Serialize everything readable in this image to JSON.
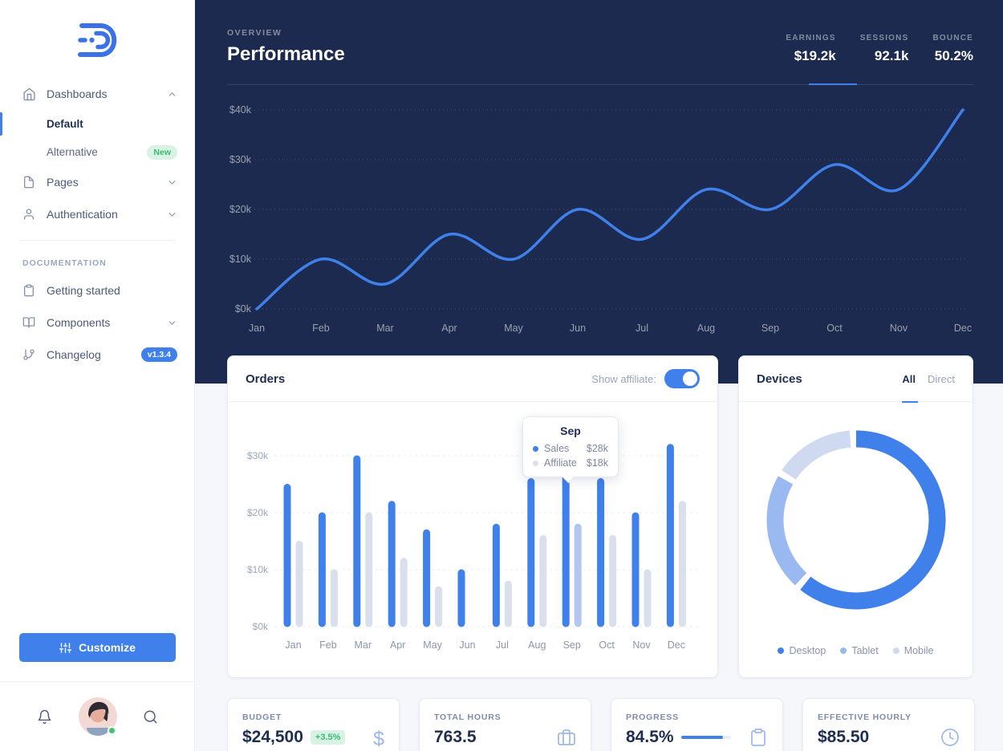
{
  "colors": {
    "accent": "#3f80ea",
    "navy": "#1b2a4e",
    "success": "#3cb878",
    "bar_gray": "#d9e0eb",
    "bar_highlight": "#b3c7ee"
  },
  "sidebar": {
    "items": [
      {
        "label": "Dashboards",
        "children": [
          {
            "label": "Default"
          },
          {
            "label": "Alternative",
            "badge": "New"
          }
        ]
      },
      {
        "label": "Pages"
      },
      {
        "label": "Authentication"
      }
    ],
    "section": "DOCUMENTATION",
    "doc_items": [
      {
        "label": "Getting started"
      },
      {
        "label": "Components"
      },
      {
        "label": "Changelog",
        "badge": "v1.3.4"
      }
    ],
    "customize": "Customize"
  },
  "header": {
    "eyebrow": "OVERVIEW",
    "title": "Performance",
    "stats": [
      {
        "label": "EARNINGS",
        "value": "$19.2k",
        "active": true
      },
      {
        "label": "SESSIONS",
        "value": "92.1k"
      },
      {
        "label": "BOUNCE",
        "value": "50.2%"
      }
    ]
  },
  "orders_card": {
    "title": "Orders",
    "toggle_label": "Show affiliate:",
    "toggle_state": "on",
    "tooltip": {
      "title": "Sep",
      "rows": [
        {
          "name": "Sales",
          "value": "$28k"
        },
        {
          "name": "Affiliate",
          "value": "$18k"
        }
      ]
    }
  },
  "devices_card": {
    "title": "Devices",
    "tabs": [
      "All",
      "Direct"
    ],
    "active_tab": "All",
    "legend": [
      "Desktop",
      "Tablet",
      "Mobile"
    ]
  },
  "stat_cards": [
    {
      "label": "BUDGET",
      "value": "$24,500",
      "badge": "+3.5%",
      "icon": "dollar-icon"
    },
    {
      "label": "TOTAL HOURS",
      "value": "763.5",
      "icon": "briefcase-icon"
    },
    {
      "label": "PROGRESS",
      "value": "84.5%",
      "progress_percent": 84.5,
      "icon": "clipboard-icon"
    },
    {
      "label": "EFFECTIVE HOURLY",
      "value": "$85.50",
      "icon": "clock-icon"
    }
  ],
  "chart_data": [
    {
      "name": "performance-line",
      "type": "line",
      "title": "Performance",
      "x": [
        "Jan",
        "Feb",
        "Mar",
        "Apr",
        "May",
        "Jun",
        "Jul",
        "Aug",
        "Sep",
        "Oct",
        "Nov",
        "Dec"
      ],
      "series": [
        {
          "name": "Earnings",
          "values": [
            0,
            10,
            5,
            15,
            10,
            20,
            14,
            24,
            20,
            29,
            24,
            40
          ]
        }
      ],
      "unit": "$k",
      "yticks": [
        0,
        10,
        20,
        30,
        40
      ],
      "ytick_labels": [
        "$0k",
        "$10k",
        "$20k",
        "$30k",
        "$40k"
      ],
      "ylim": [
        0,
        42
      ],
      "grid": "dotted",
      "line_color": "#3f80ea",
      "legend_position": "none"
    },
    {
      "name": "orders-bars",
      "type": "bar",
      "categories": [
        "Jan",
        "Feb",
        "Mar",
        "Apr",
        "May",
        "Jun",
        "Jul",
        "Aug",
        "Sep",
        "Oct",
        "Nov",
        "Dec"
      ],
      "series": [
        {
          "name": "Sales",
          "color": "#3f80ea",
          "values": [
            25,
            20,
            30,
            22,
            17,
            10,
            18,
            26,
            28,
            26,
            20,
            32
          ]
        },
        {
          "name": "Affiliate",
          "color": "#d9e0eb",
          "values": [
            15,
            10,
            20,
            12,
            7,
            0,
            8,
            16,
            18,
            16,
            10,
            22
          ],
          "highlight_index": 8,
          "highlight_color": "#b3c7ee"
        }
      ],
      "unit": "$k",
      "yticks": [
        0,
        10,
        20,
        30
      ],
      "ytick_labels": [
        "$0k",
        "$10k",
        "$20k",
        "$30k"
      ],
      "ylim": [
        0,
        33
      ],
      "grid": "dashed"
    },
    {
      "name": "devices-donut",
      "type": "pie",
      "categories": [
        "Desktop",
        "Tablet",
        "Mobile"
      ],
      "values": [
        63,
        22,
        15
      ],
      "colors": [
        "#3f80ea",
        "#9ab9f0",
        "#cfdaf0"
      ],
      "legend_position": "bottom"
    }
  ]
}
